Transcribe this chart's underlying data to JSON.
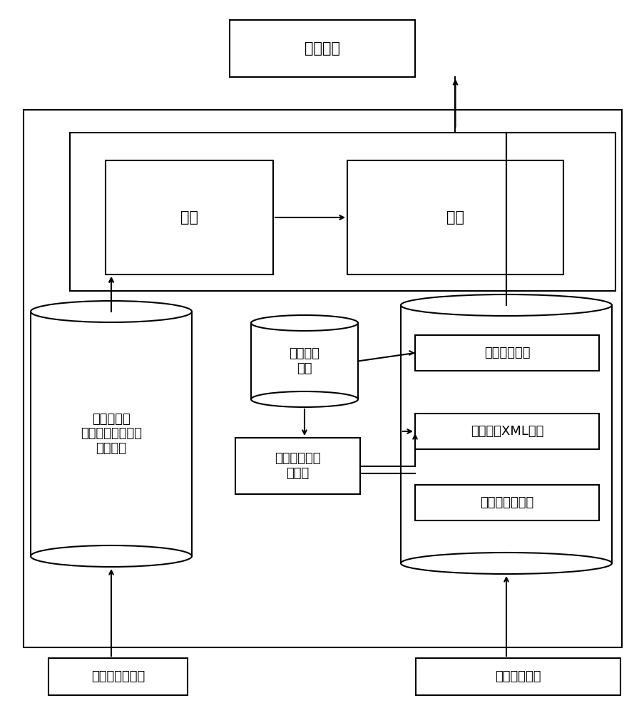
{
  "bg_color": "#ffffff",
  "line_color": "#000000",
  "lw": 1.5,
  "labels": {
    "ui": "用户界面",
    "search": "检索",
    "sort": "排序",
    "inv_index": "倒排索引库\n（以文件形成存放\n在磁盘上",
    "user_log": "用户搜索\n日志",
    "knowledge": "电网调度领域\n知识库",
    "sem_template": "语义模板列表",
    "data_model": "数据模型XML列表",
    "struct_index": "结构化数据索引",
    "unstructured": "非结构化文档库",
    "structured": "结构化数据库"
  },
  "font_size": 15,
  "font_size_small": 13
}
